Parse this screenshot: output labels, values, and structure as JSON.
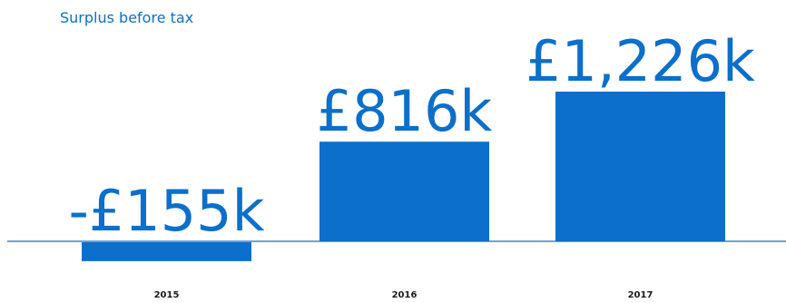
{
  "chart_data": {
    "type": "bar",
    "title": "Surplus before tax",
    "xlabel": "",
    "ylabel": "",
    "categories": [
      "2015",
      "2016",
      "2017"
    ],
    "values": [
      -155,
      816,
      1226
    ],
    "unit": "£k",
    "data_labels": [
      "-£155k",
      "£816k",
      "£1,226k"
    ],
    "grid": false,
    "legend": "none"
  },
  "colors": {
    "bar": "#0b6fcb",
    "axis": "#0b6fcb",
    "text": "#0b6fcb",
    "tick": "#1a1a1a"
  }
}
